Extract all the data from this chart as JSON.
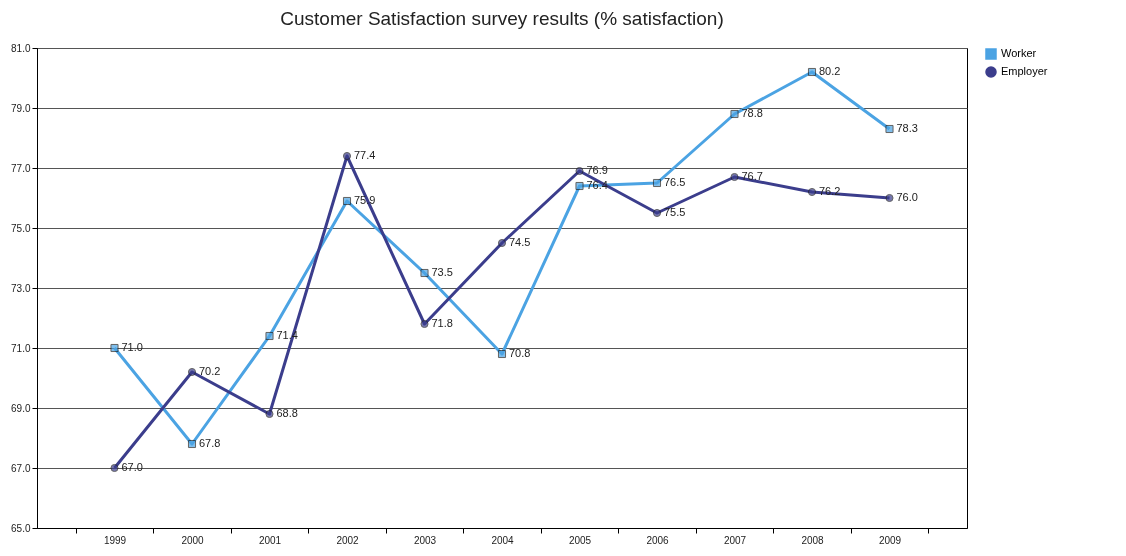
{
  "chart_data": {
    "type": "line",
    "title": "Customer Satisfaction survey results (% satisfaction)",
    "categories": [
      "1999",
      "2000",
      "2001",
      "2002",
      "2003",
      "2004",
      "2005",
      "2006",
      "2007",
      "2008",
      "2009"
    ],
    "series": [
      {
        "name": "Worker",
        "color": "#4ba3e3",
        "marker": "square",
        "values": [
          71.0,
          67.8,
          71.4,
          75.9,
          73.5,
          70.8,
          76.4,
          76.5,
          78.8,
          80.2,
          78.3
        ],
        "value_labels": [
          "71.0",
          "67.8",
          "71.4",
          "75.9",
          "73.5",
          "70.8",
          "76.4",
          "76.5",
          "78.8",
          "80.2",
          "78.3"
        ]
      },
      {
        "name": "Employer",
        "color": "#3b3d8c",
        "marker": "circle",
        "values": [
          67.0,
          70.2,
          68.8,
          77.4,
          71.8,
          74.5,
          76.9,
          75.5,
          76.7,
          76.2,
          76.0
        ],
        "value_labels": [
          "67.0",
          "70.2",
          "68.8",
          "77.4",
          "71.8",
          "74.5",
          "76.9",
          "75.5",
          "76.7",
          "76.2",
          "76.0"
        ]
      }
    ],
    "ylim": [
      65,
      81
    ],
    "yticks": [
      {
        "value": 65,
        "label": "65.0"
      },
      {
        "value": 67,
        "label": "67.0"
      },
      {
        "value": 69,
        "label": "69.0"
      },
      {
        "value": 71,
        "label": "71.0"
      },
      {
        "value": 73,
        "label": "73.0"
      },
      {
        "value": 75,
        "label": "75.0"
      },
      {
        "value": 77,
        "label": "77.0"
      },
      {
        "value": 79,
        "label": "79.0"
      },
      {
        "value": 81,
        "label": "81.0"
      }
    ],
    "grid": "y",
    "legend": "right",
    "line_style": "solid"
  }
}
